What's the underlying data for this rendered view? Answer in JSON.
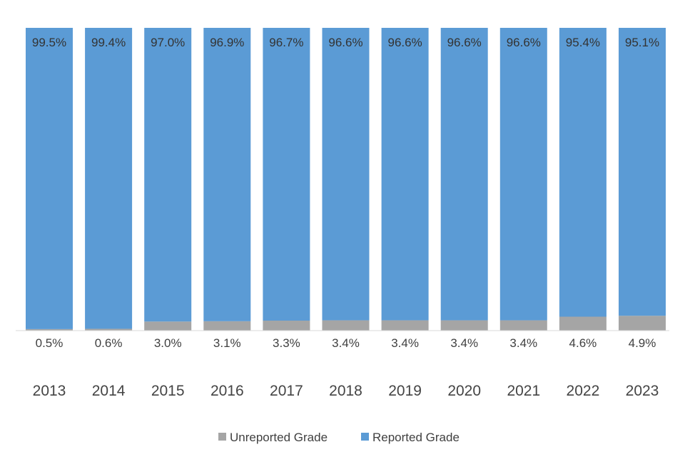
{
  "chart_data": {
    "type": "bar",
    "stacked": true,
    "normalized": true,
    "categories": [
      "2013",
      "2014",
      "2015",
      "2016",
      "2017",
      "2018",
      "2019",
      "2020",
      "2021",
      "2022",
      "2023"
    ],
    "series": [
      {
        "name": "Unreported Grade",
        "values": [
          0.5,
          0.6,
          3.0,
          3.1,
          3.3,
          3.4,
          3.4,
          3.4,
          3.4,
          4.6,
          4.9
        ],
        "labels": [
          "0.5%",
          "0.6%",
          "3.0%",
          "3.1%",
          "3.3%",
          "3.4%",
          "3.4%",
          "3.4%",
          "3.4%",
          "4.6%",
          "4.9%"
        ],
        "color": "#a5a5a5"
      },
      {
        "name": "Reported Grade",
        "values": [
          99.5,
          99.4,
          97.0,
          96.9,
          96.7,
          96.6,
          96.6,
          96.6,
          96.6,
          95.4,
          95.1
        ],
        "labels": [
          "99.5%",
          "99.4%",
          "97.0%",
          "96.9%",
          "96.7%",
          "96.6%",
          "96.6%",
          "96.6%",
          "96.6%",
          "95.4%",
          "95.1%"
        ],
        "color": "#5b9bd5"
      }
    ],
    "ylim": [
      0,
      100
    ],
    "grid": false,
    "legend": "bottom"
  }
}
